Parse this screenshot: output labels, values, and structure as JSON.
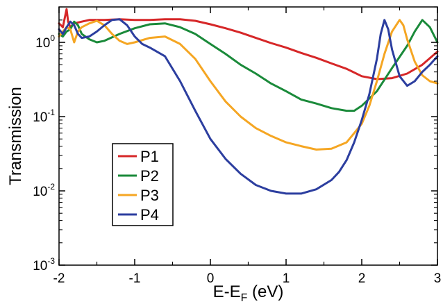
{
  "chart_data": {
    "type": "line",
    "xlabel": "E-E",
    "xlabel_sub": "F",
    "xlabel_unit": " (eV)",
    "ylabel": "Transmission",
    "xlim": [
      -2,
      3
    ],
    "ylim": [
      0.001,
      3
    ],
    "yscale": "log",
    "x_ticks": [
      {
        "value": -2,
        "label": "-2"
      },
      {
        "value": -1,
        "label": "-1"
      },
      {
        "value": 0,
        "label": "0"
      },
      {
        "value": 1,
        "label": "1"
      },
      {
        "value": 2,
        "label": "2"
      },
      {
        "value": 3,
        "label": "3"
      }
    ],
    "y_ticks": [
      {
        "value": 0.001,
        "base": "10",
        "exp": "-3"
      },
      {
        "value": 0.01,
        "base": "10",
        "exp": "-2"
      },
      {
        "value": 0.1,
        "base": "10",
        "exp": "-1"
      },
      {
        "value": 1,
        "base": "10",
        "exp": "0"
      }
    ],
    "legend_position": "lower-left",
    "grid": false,
    "series": [
      {
        "name": "P1",
        "color": "#d62728",
        "points": [
          [
            -2.0,
            1.8
          ],
          [
            -1.95,
            1.6
          ],
          [
            -1.9,
            2.8
          ],
          [
            -1.88,
            1.9
          ],
          [
            -1.85,
            1.6
          ],
          [
            -1.8,
            1.8
          ],
          [
            -1.7,
            1.9
          ],
          [
            -1.6,
            2.0
          ],
          [
            -1.5,
            2.0
          ],
          [
            -1.4,
            2.0
          ],
          [
            -1.2,
            2.05
          ],
          [
            -1.0,
            2.0
          ],
          [
            -0.8,
            2.0
          ],
          [
            -0.6,
            2.05
          ],
          [
            -0.4,
            2.05
          ],
          [
            -0.2,
            1.95
          ],
          [
            0.0,
            1.75
          ],
          [
            0.2,
            1.55
          ],
          [
            0.4,
            1.35
          ],
          [
            0.6,
            1.15
          ],
          [
            0.8,
            0.98
          ],
          [
            1.0,
            0.85
          ],
          [
            1.2,
            0.72
          ],
          [
            1.4,
            0.62
          ],
          [
            1.6,
            0.52
          ],
          [
            1.8,
            0.44
          ],
          [
            2.0,
            0.35
          ],
          [
            2.2,
            0.32
          ],
          [
            2.4,
            0.33
          ],
          [
            2.6,
            0.38
          ],
          [
            2.8,
            0.5
          ],
          [
            3.0,
            0.75
          ]
        ]
      },
      {
        "name": "P2",
        "color": "#1a8a3a",
        "points": [
          [
            -2.0,
            1.3
          ],
          [
            -1.95,
            1.2
          ],
          [
            -1.9,
            1.4
          ],
          [
            -1.85,
            1.5
          ],
          [
            -1.8,
            1.9
          ],
          [
            -1.75,
            1.7
          ],
          [
            -1.7,
            1.3
          ],
          [
            -1.6,
            1.1
          ],
          [
            -1.5,
            1.0
          ],
          [
            -1.4,
            1.05
          ],
          [
            -1.2,
            1.3
          ],
          [
            -1.0,
            1.55
          ],
          [
            -0.8,
            1.75
          ],
          [
            -0.6,
            1.8
          ],
          [
            -0.4,
            1.6
          ],
          [
            -0.2,
            1.3
          ],
          [
            0.0,
            0.95
          ],
          [
            0.2,
            0.7
          ],
          [
            0.4,
            0.5
          ],
          [
            0.6,
            0.38
          ],
          [
            0.8,
            0.28
          ],
          [
            1.0,
            0.22
          ],
          [
            1.2,
            0.17
          ],
          [
            1.4,
            0.15
          ],
          [
            1.6,
            0.13
          ],
          [
            1.8,
            0.12
          ],
          [
            1.9,
            0.12
          ],
          [
            2.0,
            0.14
          ],
          [
            2.2,
            0.22
          ],
          [
            2.4,
            0.45
          ],
          [
            2.6,
            0.9
          ],
          [
            2.7,
            1.4
          ],
          [
            2.8,
            2.0
          ],
          [
            2.9,
            1.6
          ],
          [
            3.0,
            1.0
          ]
        ]
      },
      {
        "name": "P3",
        "color": "#f5a623",
        "points": [
          [
            -2.0,
            1.2
          ],
          [
            -1.95,
            1.4
          ],
          [
            -1.9,
            1.6
          ],
          [
            -1.85,
            1.5
          ],
          [
            -1.8,
            1.0
          ],
          [
            -1.75,
            1.4
          ],
          [
            -1.7,
            1.6
          ],
          [
            -1.6,
            1.8
          ],
          [
            -1.5,
            1.95
          ],
          [
            -1.4,
            1.7
          ],
          [
            -1.3,
            1.3
          ],
          [
            -1.2,
            1.05
          ],
          [
            -1.1,
            0.95
          ],
          [
            -1.0,
            1.0
          ],
          [
            -0.8,
            1.15
          ],
          [
            -0.6,
            1.2
          ],
          [
            -0.4,
            0.95
          ],
          [
            -0.2,
            0.6
          ],
          [
            0.0,
            0.3
          ],
          [
            0.2,
            0.16
          ],
          [
            0.4,
            0.1
          ],
          [
            0.6,
            0.07
          ],
          [
            0.8,
            0.055
          ],
          [
            1.0,
            0.045
          ],
          [
            1.2,
            0.04
          ],
          [
            1.4,
            0.036
          ],
          [
            1.6,
            0.037
          ],
          [
            1.8,
            0.045
          ],
          [
            2.0,
            0.08
          ],
          [
            2.1,
            0.14
          ],
          [
            2.2,
            0.3
          ],
          [
            2.3,
            0.7
          ],
          [
            2.4,
            1.4
          ],
          [
            2.5,
            2.0
          ],
          [
            2.55,
            1.7
          ],
          [
            2.6,
            1.1
          ],
          [
            2.7,
            0.55
          ],
          [
            2.8,
            0.36
          ],
          [
            2.9,
            0.3
          ],
          [
            3.0,
            0.28
          ]
        ]
      },
      {
        "name": "P4",
        "color": "#2c3e9f",
        "points": [
          [
            -2.0,
            1.5
          ],
          [
            -1.95,
            1.3
          ],
          [
            -1.9,
            1.6
          ],
          [
            -1.85,
            1.9
          ],
          [
            -1.8,
            1.7
          ],
          [
            -1.75,
            1.3
          ],
          [
            -1.7,
            1.15
          ],
          [
            -1.6,
            1.2
          ],
          [
            -1.5,
            1.4
          ],
          [
            -1.4,
            1.7
          ],
          [
            -1.3,
            2.0
          ],
          [
            -1.2,
            2.05
          ],
          [
            -1.1,
            1.7
          ],
          [
            -1.0,
            1.2
          ],
          [
            -0.9,
            0.95
          ],
          [
            -0.8,
            0.85
          ],
          [
            -0.6,
            0.65
          ],
          [
            -0.4,
            0.3
          ],
          [
            -0.2,
            0.12
          ],
          [
            0.0,
            0.05
          ],
          [
            0.2,
            0.027
          ],
          [
            0.4,
            0.017
          ],
          [
            0.6,
            0.012
          ],
          [
            0.8,
            0.01
          ],
          [
            1.0,
            0.0092
          ],
          [
            1.2,
            0.0092
          ],
          [
            1.4,
            0.0105
          ],
          [
            1.6,
            0.014
          ],
          [
            1.7,
            0.018
          ],
          [
            1.8,
            0.026
          ],
          [
            1.9,
            0.045
          ],
          [
            2.0,
            0.09
          ],
          [
            2.1,
            0.2
          ],
          [
            2.2,
            0.6
          ],
          [
            2.25,
            1.3
          ],
          [
            2.3,
            2.0
          ],
          [
            2.35,
            1.5
          ],
          [
            2.4,
            0.8
          ],
          [
            2.5,
            0.35
          ],
          [
            2.6,
            0.26
          ],
          [
            2.7,
            0.3
          ],
          [
            2.8,
            0.4
          ],
          [
            2.9,
            0.5
          ],
          [
            3.0,
            0.65
          ]
        ]
      }
    ]
  }
}
